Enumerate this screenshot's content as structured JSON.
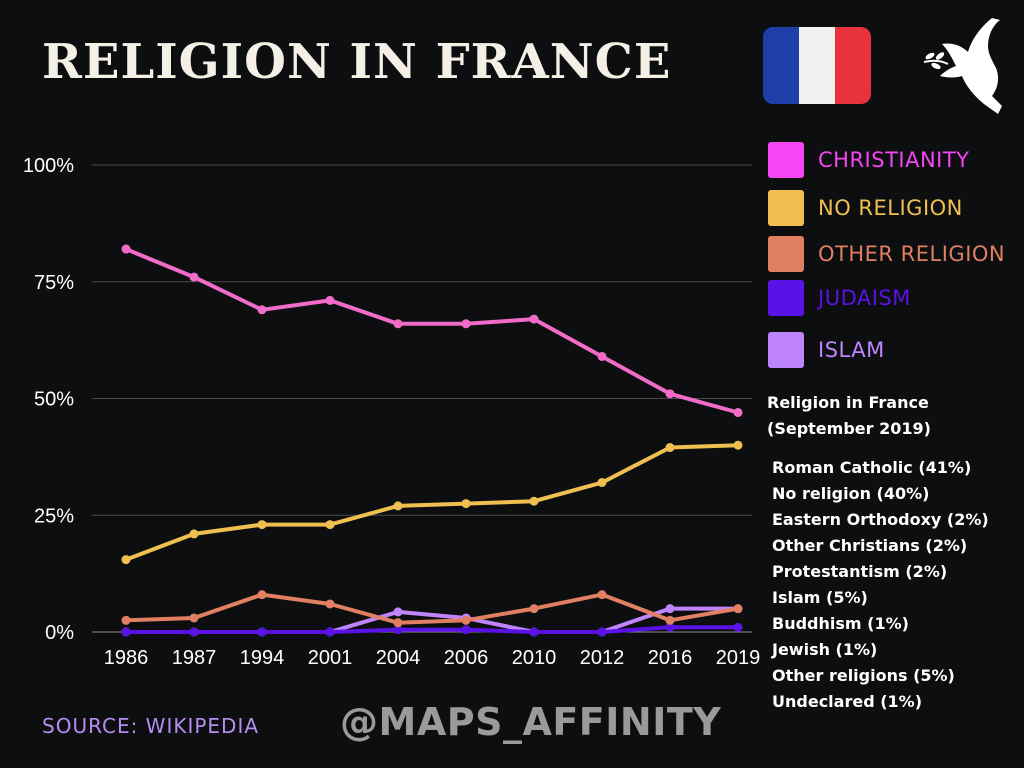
{
  "header": {
    "title": "RELIGION IN FRANCE",
    "flag_colors": [
      "#1f3ea8",
      "#f1f1f1",
      "#e8323c"
    ],
    "dove_icon": "dove-with-olive-branch-icon"
  },
  "chart_data": {
    "type": "line",
    "title": "RELIGION IN FRANCE",
    "x": [
      "1986",
      "1987",
      "1994",
      "2001",
      "2004",
      "2006",
      "2010",
      "2012",
      "2016",
      "2019"
    ],
    "y_ticks": [
      "0%",
      "25%",
      "50%",
      "75%",
      "100%"
    ],
    "ylim": [
      0,
      100
    ],
    "grid": true,
    "legend_position": "right",
    "series": [
      {
        "name": "CHRISTIANITY",
        "color": "#f06cc8",
        "values": [
          82,
          76,
          69,
          71,
          66,
          66,
          67,
          59,
          51,
          47
        ]
      },
      {
        "name": "NO RELIGION",
        "color": "#efc050",
        "values": [
          15.5,
          21,
          23,
          23,
          27,
          27.5,
          28,
          32,
          39.5,
          40
        ]
      },
      {
        "name": "OTHER RELIGION",
        "color": "#e07f61",
        "values": [
          2.5,
          3,
          8,
          6,
          2,
          2.5,
          5,
          8,
          2.5,
          5
        ]
      },
      {
        "name": "JUDAISM",
        "color": "#5a12e6",
        "values": [
          0,
          0,
          0,
          0,
          0.5,
          0.5,
          0,
          0,
          1,
          1
        ]
      },
      {
        "name": "ISLAM",
        "color": "#c084fc",
        "values": [
          0,
          0,
          0,
          0,
          4.3,
          3,
          0,
          0,
          5,
          5
        ]
      }
    ],
    "legend_swatch_colors": [
      "#f545f5",
      "#efc050",
      "#e07f61",
      "#5a12e6",
      "#c084fc"
    ]
  },
  "note": {
    "heading_line1": "Religion in France",
    "heading_line2": "(September 2019)",
    "items": [
      "Roman Catholic (41%)",
      "No religion (40%)",
      "Eastern Orthodoxy (2%)",
      "Other Christians (2%)",
      "Protestantism (2%)",
      "Islam (5%)",
      "Buddhism (1%)",
      "Jewish (1%)",
      "Other religions (5%)",
      "Undeclared (1%)"
    ]
  },
  "footer": {
    "source": "SOURCE: WIKIPEDIA",
    "handle": "@MAPS_AFFINITY"
  }
}
